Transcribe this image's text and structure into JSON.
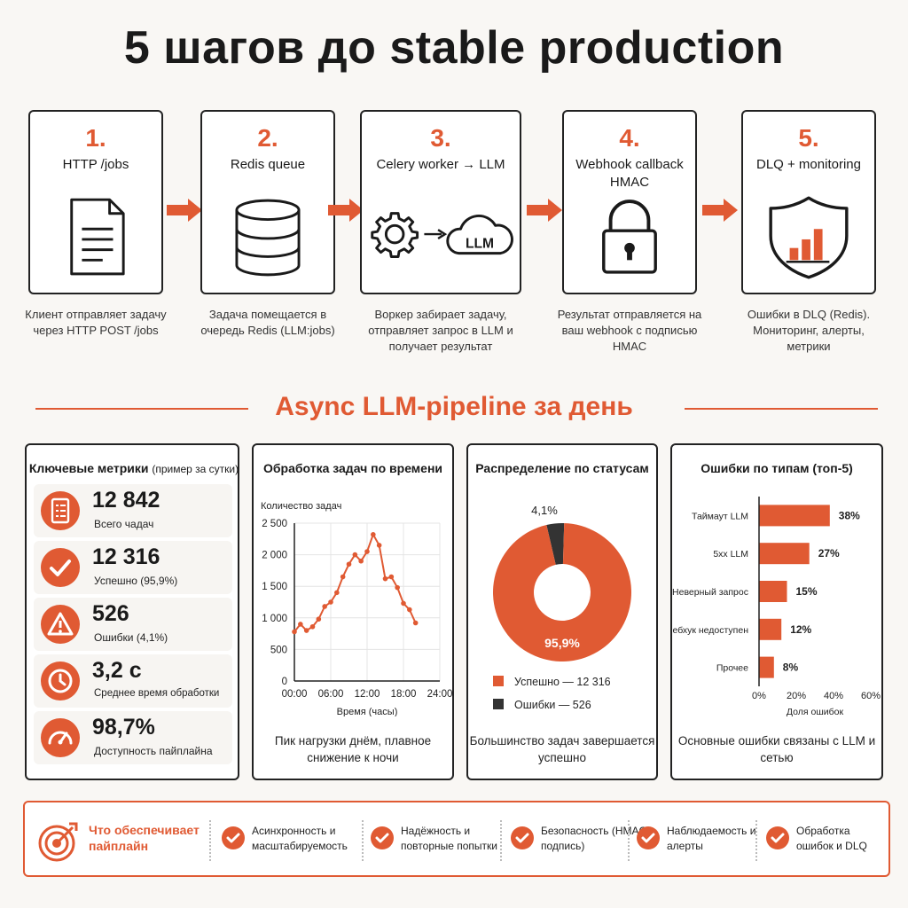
{
  "title": "5 шагов до stable production",
  "steps": [
    {
      "num": "1.",
      "title": "HTTP /jobs",
      "desc": "Клиент отправляет задачу через HTTP POST /jobs",
      "icon": "document-icon"
    },
    {
      "num": "2.",
      "title": "Redis queue",
      "desc": "Задача помещается в очередь Redis (LLM:jobs)",
      "icon": "database-icon"
    },
    {
      "num": "3.",
      "title": "Celery worker → LLM",
      "desc": "Воркер забирает задачу, отправляет запрос в LLM и получает результат",
      "icon": "gear-cloud-icon",
      "cloud_label": "LLM"
    },
    {
      "num": "4.",
      "title": "Webhook callback HMAC",
      "desc": "Результат отправляется на ваш webhook с подписью HMAC",
      "icon": "lock-icon"
    },
    {
      "num": "5.",
      "title": "DLQ + monitoring",
      "desc": "Ошибки в DLQ (Redis). Мониторинг, алерты, метрики",
      "icon": "shield-chart-icon"
    }
  ],
  "section_title": "Async LLM-pipeline за день",
  "metrics_panel": {
    "title": "Ключевые метрики",
    "title_note": "(пример за сутки)",
    "items": [
      {
        "value": "12 842",
        "label": "Всего чадач",
        "icon": "checklist-icon"
      },
      {
        "value": "12 316",
        "label": "Успешно (95,9%)",
        "icon": "check-icon"
      },
      {
        "value": "526",
        "label": "Ошибки (4,1%)",
        "icon": "warning-icon"
      },
      {
        "value": "3,2 с",
        "label": "Среднее время обработки",
        "icon": "clock-icon"
      },
      {
        "value": "98,7%",
        "label": "Доступность пайплайна",
        "icon": "gauge-icon"
      }
    ]
  },
  "line_panel": {
    "title": "Обработка задач по времени",
    "caption": "Пик нагрузки днём, плавное снижение к ночи"
  },
  "pie_panel": {
    "title": "Распределение по статусам",
    "caption": "Большинство задач завершается успешно"
  },
  "bar_panel": {
    "title": "Ошибки по типам (топ-5)",
    "caption": "Основные ошибки связаны с LLM и сетью"
  },
  "chart_data": [
    {
      "type": "line",
      "ylabel": "Количество задач",
      "xlabel": "Время (часы)",
      "x_ticks": [
        "00:00",
        "06:00",
        "12:00",
        "18:00",
        "24:00"
      ],
      "y_ticks": [
        "0",
        "500",
        "1 000",
        "1 500",
        "2 000",
        "2 500"
      ],
      "ylim": [
        0,
        2500
      ],
      "xlim": [
        0,
        24
      ],
      "grid": true,
      "series": [
        {
          "values": [
            {
              "x": 0,
              "y": 780
            },
            {
              "x": 1,
              "y": 900
            },
            {
              "x": 2,
              "y": 800
            },
            {
              "x": 3,
              "y": 860
            },
            {
              "x": 4,
              "y": 980
            },
            {
              "x": 5,
              "y": 1180
            },
            {
              "x": 6,
              "y": 1250
            },
            {
              "x": 7,
              "y": 1400
            },
            {
              "x": 8,
              "y": 1650
            },
            {
              "x": 9,
              "y": 1850
            },
            {
              "x": 10,
              "y": 2000
            },
            {
              "x": 11,
              "y": 1900
            },
            {
              "x": 12,
              "y": 2050
            },
            {
              "x": 13,
              "y": 2320
            },
            {
              "x": 14,
              "y": 2150
            },
            {
              "x": 15,
              "y": 1620
            },
            {
              "x": 16,
              "y": 1650
            },
            {
              "x": 17,
              "y": 1480
            },
            {
              "x": 18,
              "y": 1230
            },
            {
              "x": 19,
              "y": 1130
            },
            {
              "x": 20,
              "y": 920
            }
          ]
        }
      ],
      "color": "#e05a33"
    },
    {
      "type": "pie",
      "donut": true,
      "slices": [
        {
          "name": "Успешно",
          "value": 12316,
          "label": "95,9%",
          "legend": "Успешно — 12 316",
          "color": "#e05a33"
        },
        {
          "name": "Ошибки",
          "value": 526,
          "label": "4,1%",
          "legend": "Ошибки — 526",
          "color": "#333333"
        }
      ]
    },
    {
      "type": "bar",
      "orientation": "horizontal",
      "categories": [
        "Таймаут LLM",
        "5xx LLM",
        "Неверный запрос",
        "Вебхук недоступен",
        "Прочее"
      ],
      "values": [
        38,
        27,
        15,
        12,
        8
      ],
      "value_labels": [
        "38%",
        "27%",
        "15%",
        "12%",
        "8%"
      ],
      "x_ticks": [
        "0%",
        "20%",
        "40%",
        "60%"
      ],
      "xlim": [
        0,
        60
      ],
      "xlabel": "Доля ошибок",
      "color": "#e05a33"
    }
  ],
  "bottom": {
    "lead": "Что обеспечивает пайплайн",
    "items": [
      {
        "text": "Асинхронность и масштабируемость"
      },
      {
        "text": "Надёжность и повторные попытки"
      },
      {
        "text": "Безопасность (HMAC-подпись)"
      },
      {
        "text": "Наблюдаемость и алерты"
      },
      {
        "text": "Обработка ошибок и DLQ"
      }
    ]
  },
  "colors": {
    "accent": "#e05a33",
    "dark": "#222222",
    "background": "#f9f7f4"
  }
}
